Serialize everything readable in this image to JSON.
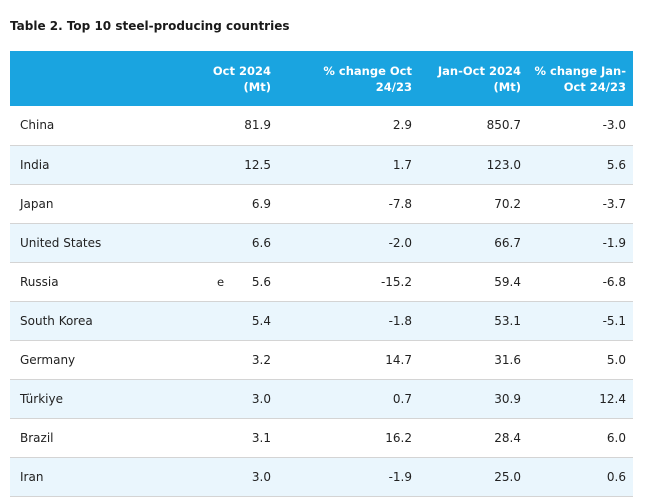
{
  "caption": "Table 2. Top 10 steel-producing countries",
  "table": {
    "headers": [
      "",
      "Oct 2024\n(Mt)",
      "% change Oct\n24/23",
      "Jan-Oct 2024\n(Mt)",
      "% change Jan-\nOct 24/23"
    ],
    "header_lines": [
      [
        "",
        ""
      ],
      [
        "Oct 2024",
        "(Mt)"
      ],
      [
        "% change Oct",
        "24/23"
      ],
      [
        "Jan-Oct 2024",
        "(Mt)"
      ],
      [
        "% change Jan-",
        "Oct 24/23"
      ]
    ],
    "rows": [
      {
        "country": "China",
        "oct_2024": "81.9",
        "flag": "",
        "pct_oct": "2.9",
        "jan_oct_2024": "850.7",
        "pct_jan_oct": "-3.0"
      },
      {
        "country": "India",
        "oct_2024": "12.5",
        "flag": "",
        "pct_oct": "1.7",
        "jan_oct_2024": "123.0",
        "pct_jan_oct": "5.6"
      },
      {
        "country": "Japan",
        "oct_2024": "6.9",
        "flag": "",
        "pct_oct": "-7.8",
        "jan_oct_2024": "70.2",
        "pct_jan_oct": "-3.7"
      },
      {
        "country": "United States",
        "oct_2024": "6.6",
        "flag": "",
        "pct_oct": "-2.0",
        "jan_oct_2024": "66.7",
        "pct_jan_oct": "-1.9"
      },
      {
        "country": "Russia",
        "oct_2024": "5.6",
        "flag": "e",
        "pct_oct": "-15.2",
        "jan_oct_2024": "59.4",
        "pct_jan_oct": "-6.8"
      },
      {
        "country": "South Korea",
        "oct_2024": "5.4",
        "flag": "",
        "pct_oct": "-1.8",
        "jan_oct_2024": "53.1",
        "pct_jan_oct": "-5.1"
      },
      {
        "country": "Germany",
        "oct_2024": "3.2",
        "flag": "",
        "pct_oct": "14.7",
        "jan_oct_2024": "31.6",
        "pct_jan_oct": "5.0"
      },
      {
        "country": "Türkiye",
        "oct_2024": "3.0",
        "flag": "",
        "pct_oct": "0.7",
        "jan_oct_2024": "30.9",
        "pct_jan_oct": "12.4"
      },
      {
        "country": "Brazil",
        "oct_2024": "3.1",
        "flag": "",
        "pct_oct": "16.2",
        "jan_oct_2024": "28.4",
        "pct_jan_oct": "6.0"
      },
      {
        "country": "Iran",
        "oct_2024": "3.0",
        "flag": "",
        "pct_oct": "-1.9",
        "jan_oct_2024": "25.0",
        "pct_jan_oct": "0.6"
      }
    ]
  },
  "colors": {
    "header_background": "#1aa4e0",
    "header_text": "#ffffff",
    "shaded_row": "#eaf6fd",
    "row_divider": "#d4d4d4"
  }
}
